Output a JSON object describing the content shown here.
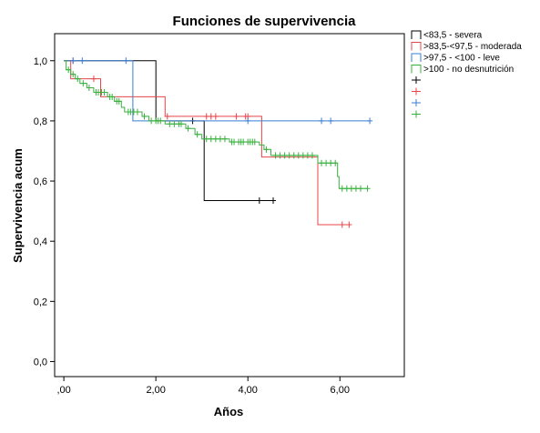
{
  "chart_data": {
    "type": "line",
    "step": true,
    "title": "Funciones de supervivencia",
    "xlabel": "Años",
    "ylabel": "Supervivencia acum",
    "xlim": [
      -0.2,
      7.4
    ],
    "ylim": [
      -0.05,
      1.09
    ],
    "xticks": [
      0,
      2,
      4,
      6
    ],
    "xtick_labels": [
      ",00",
      "2,00",
      "4,00",
      "6,00"
    ],
    "yticks": [
      0,
      0.2,
      0.4,
      0.6,
      0.8,
      1.0
    ],
    "ytick_labels": [
      "0,0",
      "0,2",
      "0,4",
      "0,6",
      "0,8",
      "1,0"
    ],
    "grid": false,
    "legend_position": "right",
    "legend_entries": [
      "<83,5 - severa",
      ">83,5-<97,5 - moderada",
      ">97,5 - <100 - leve",
      ">100 - no desnutrición",
      "",
      "",
      "",
      ""
    ],
    "series": [
      {
        "name": "<83,5 - severa",
        "color": "#000000",
        "steps": [
          [
            0,
            1.0
          ],
          [
            2.0,
            1.0
          ],
          [
            2.0,
            0.8
          ],
          [
            3.05,
            0.8
          ],
          [
            3.05,
            0.535
          ],
          [
            4.55,
            0.535
          ]
        ],
        "censored": [
          [
            2.8,
            0.8
          ],
          [
            4.25,
            0.535
          ],
          [
            4.55,
            0.535
          ]
        ]
      },
      {
        "name": ">83,5-<97,5 - moderada",
        "color": "#e8454a",
        "steps": [
          [
            0,
            1.0
          ],
          [
            0.15,
            1.0
          ],
          [
            0.15,
            0.94
          ],
          [
            0.8,
            0.94
          ],
          [
            0.8,
            0.88
          ],
          [
            2.2,
            0.88
          ],
          [
            2.2,
            0.815
          ],
          [
            4.3,
            0.815
          ],
          [
            4.3,
            0.68
          ],
          [
            5.52,
            0.68
          ],
          [
            5.52,
            0.455
          ],
          [
            6.2,
            0.455
          ]
        ],
        "censored": [
          [
            0.2,
            1.0
          ],
          [
            0.65,
            0.94
          ],
          [
            2.25,
            0.815
          ],
          [
            3.1,
            0.815
          ],
          [
            3.2,
            0.815
          ],
          [
            3.3,
            0.815
          ],
          [
            3.75,
            0.815
          ],
          [
            3.95,
            0.815
          ],
          [
            4.0,
            0.815
          ],
          [
            6.05,
            0.455
          ],
          [
            6.2,
            0.455
          ]
        ]
      },
      {
        "name": ">97,5 - <100 - leve",
        "color": "#3a7fd5",
        "steps": [
          [
            0,
            1.0
          ],
          [
            1.5,
            1.0
          ],
          [
            1.5,
            0.8
          ],
          [
            6.65,
            0.8
          ]
        ],
        "censored": [
          [
            0.2,
            1.0
          ],
          [
            0.4,
            1.0
          ],
          [
            1.35,
            1.0
          ],
          [
            4.0,
            0.8
          ],
          [
            5.6,
            0.8
          ],
          [
            5.8,
            0.8
          ],
          [
            6.65,
            0.8
          ]
        ]
      },
      {
        "name": ">100 - no desnutrición",
        "color": "#38b03d",
        "steps": [
          [
            0,
            1.0
          ],
          [
            0.05,
            1.0
          ],
          [
            0.05,
            0.97
          ],
          [
            0.15,
            0.97
          ],
          [
            0.15,
            0.955
          ],
          [
            0.25,
            0.955
          ],
          [
            0.25,
            0.94
          ],
          [
            0.35,
            0.94
          ],
          [
            0.35,
            0.925
          ],
          [
            0.5,
            0.925
          ],
          [
            0.5,
            0.91
          ],
          [
            0.65,
            0.91
          ],
          [
            0.65,
            0.895
          ],
          [
            0.95,
            0.895
          ],
          [
            0.95,
            0.88
          ],
          [
            1.1,
            0.88
          ],
          [
            1.1,
            0.865
          ],
          [
            1.25,
            0.865
          ],
          [
            1.25,
            0.845
          ],
          [
            1.32,
            0.845
          ],
          [
            1.32,
            0.83
          ],
          [
            1.7,
            0.83
          ],
          [
            1.7,
            0.815
          ],
          [
            1.85,
            0.815
          ],
          [
            1.85,
            0.8
          ],
          [
            2.2,
            0.8
          ],
          [
            2.2,
            0.79
          ],
          [
            2.65,
            0.79
          ],
          [
            2.65,
            0.775
          ],
          [
            2.85,
            0.775
          ],
          [
            2.85,
            0.755
          ],
          [
            3.0,
            0.755
          ],
          [
            3.0,
            0.74
          ],
          [
            3.6,
            0.74
          ],
          [
            3.6,
            0.73
          ],
          [
            4.25,
            0.73
          ],
          [
            4.25,
            0.72
          ],
          [
            4.35,
            0.72
          ],
          [
            4.35,
            0.705
          ],
          [
            4.5,
            0.705
          ],
          [
            4.5,
            0.685
          ],
          [
            5.52,
            0.685
          ],
          [
            5.52,
            0.66
          ],
          [
            5.95,
            0.66
          ],
          [
            5.95,
            0.615
          ],
          [
            5.98,
            0.615
          ],
          [
            5.98,
            0.575
          ],
          [
            6.6,
            0.575
          ]
        ],
        "censored": [
          [
            0.1,
            0.97
          ],
          [
            0.2,
            0.955
          ],
          [
            0.3,
            0.94
          ],
          [
            0.42,
            0.925
          ],
          [
            0.55,
            0.91
          ],
          [
            0.7,
            0.895
          ],
          [
            0.75,
            0.895
          ],
          [
            0.82,
            0.895
          ],
          [
            0.88,
            0.895
          ],
          [
            1.0,
            0.88
          ],
          [
            1.05,
            0.88
          ],
          [
            1.15,
            0.865
          ],
          [
            1.2,
            0.865
          ],
          [
            1.4,
            0.83
          ],
          [
            1.45,
            0.83
          ],
          [
            1.52,
            0.83
          ],
          [
            1.6,
            0.83
          ],
          [
            1.75,
            0.815
          ],
          [
            1.9,
            0.8
          ],
          [
            2.0,
            0.8
          ],
          [
            2.05,
            0.8
          ],
          [
            2.1,
            0.8
          ],
          [
            2.3,
            0.79
          ],
          [
            2.4,
            0.79
          ],
          [
            2.5,
            0.79
          ],
          [
            2.55,
            0.79
          ],
          [
            2.7,
            0.775
          ],
          [
            2.9,
            0.755
          ],
          [
            3.1,
            0.74
          ],
          [
            3.2,
            0.74
          ],
          [
            3.3,
            0.74
          ],
          [
            3.4,
            0.74
          ],
          [
            3.5,
            0.74
          ],
          [
            3.65,
            0.73
          ],
          [
            3.7,
            0.73
          ],
          [
            3.8,
            0.73
          ],
          [
            3.85,
            0.73
          ],
          [
            3.9,
            0.73
          ],
          [
            4.0,
            0.73
          ],
          [
            4.05,
            0.73
          ],
          [
            4.1,
            0.73
          ],
          [
            4.15,
            0.73
          ],
          [
            4.4,
            0.705
          ],
          [
            4.6,
            0.685
          ],
          [
            4.7,
            0.685
          ],
          [
            4.8,
            0.685
          ],
          [
            4.9,
            0.685
          ],
          [
            5.0,
            0.685
          ],
          [
            5.1,
            0.685
          ],
          [
            5.2,
            0.685
          ],
          [
            5.3,
            0.685
          ],
          [
            5.4,
            0.685
          ],
          [
            5.6,
            0.66
          ],
          [
            5.7,
            0.66
          ],
          [
            5.8,
            0.66
          ],
          [
            5.9,
            0.66
          ],
          [
            6.05,
            0.575
          ],
          [
            6.15,
            0.575
          ],
          [
            6.25,
            0.575
          ],
          [
            6.35,
            0.575
          ],
          [
            6.45,
            0.575
          ],
          [
            6.6,
            0.575
          ]
        ]
      },
      {
        "name": "",
        "legend_only": true,
        "color": "#000000",
        "steps": [],
        "censored": []
      },
      {
        "name": "",
        "legend_only": true,
        "color": "#e8454a",
        "steps": [],
        "censored": []
      },
      {
        "name": "",
        "legend_only": true,
        "color": "#3a7fd5",
        "steps": [],
        "censored": []
      },
      {
        "name": "",
        "legend_only": true,
        "color": "#38b03d",
        "steps": [],
        "censored": []
      }
    ]
  }
}
